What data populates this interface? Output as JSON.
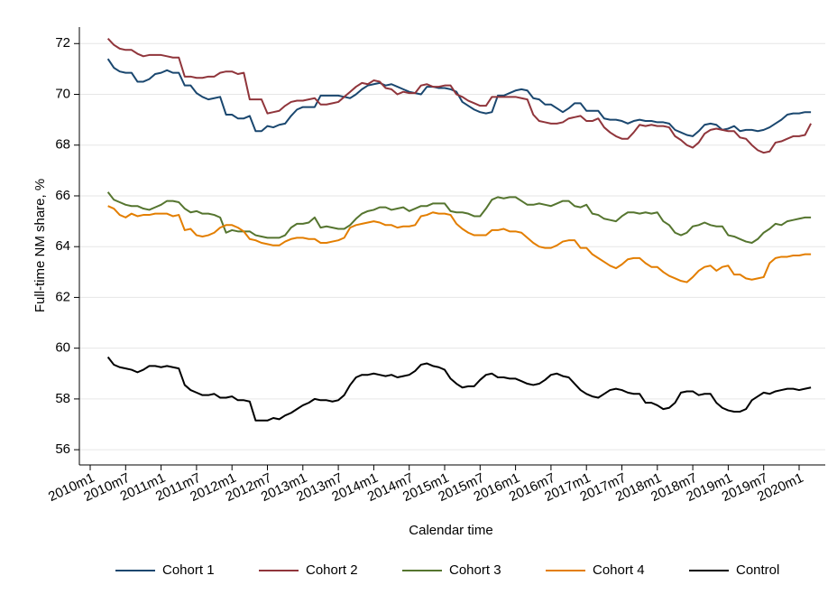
{
  "chart_data": {
    "type": "line",
    "y_label": "Full-time NM share, %",
    "x_label": "Calendar time",
    "x": [
      "2010m4",
      "2010m5",
      "2010m6",
      "2010m7",
      "2010m8",
      "2010m9",
      "2010m10",
      "2010m11",
      "2010m12",
      "2011m1",
      "2011m2",
      "2011m3",
      "2011m4",
      "2011m5",
      "2011m6",
      "2011m7",
      "2011m8",
      "2011m9",
      "2011m10",
      "2011m11",
      "2011m12",
      "2012m1",
      "2012m2",
      "2012m3",
      "2012m4",
      "2012m5",
      "2012m6",
      "2012m7",
      "2012m8",
      "2012m9",
      "2012m10",
      "2012m11",
      "2012m12",
      "2013m1",
      "2013m2",
      "2013m3",
      "2013m4",
      "2013m5",
      "2013m6",
      "2013m7",
      "2013m8",
      "2013m9",
      "2013m10",
      "2013m11",
      "2013m12",
      "2014m1",
      "2014m2",
      "2014m3",
      "2014m4",
      "2014m5",
      "2014m6",
      "2014m7",
      "2014m8",
      "2014m9",
      "2014m10",
      "2014m11",
      "2014m12",
      "2015m1",
      "2015m2",
      "2015m3",
      "2015m4",
      "2015m5",
      "2015m6",
      "2015m7",
      "2015m8",
      "2015m9",
      "2015m10",
      "2015m11",
      "2015m12",
      "2016m1",
      "2016m2",
      "2016m3",
      "2016m4",
      "2016m5",
      "2016m6",
      "2016m7",
      "2016m8",
      "2016m9",
      "2016m10",
      "2016m11",
      "2016m12",
      "2017m1",
      "2017m2",
      "2017m3",
      "2017m4",
      "2017m5",
      "2017m6",
      "2017m7",
      "2017m8",
      "2017m9",
      "2017m10",
      "2017m11",
      "2017m12",
      "2018m1",
      "2018m2",
      "2018m3",
      "2018m4",
      "2018m5",
      "2018m6",
      "2018m7",
      "2018m8",
      "2018m9",
      "2018m10",
      "2018m11",
      "2018m12",
      "2019m1",
      "2019m2",
      "2019m3",
      "2019m4",
      "2019m5",
      "2019m6",
      "2019m7",
      "2019m8",
      "2019m9",
      "2019m10",
      "2019m11",
      "2019m12",
      "2020m1",
      "2020m2",
      "2020m3"
    ],
    "xticks": [
      "2010m1",
      "2010m7",
      "2011m1",
      "2011m7",
      "2012m1",
      "2012m7",
      "2013m1",
      "2013m7",
      "2014m1",
      "2014m7",
      "2015m1",
      "2015m7",
      "2016m1",
      "2016m7",
      "2017m1",
      "2017m7",
      "2018m1",
      "2018m7",
      "2019m1",
      "2019m7",
      "2020m1"
    ],
    "ylim": [
      55.4,
      72.65
    ],
    "yticks": [
      56,
      58,
      60,
      62,
      64,
      66,
      68,
      70,
      72
    ],
    "grid": true,
    "legend": "bottom",
    "series": [
      {
        "name": "Cohort 1",
        "color": "#1a476f",
        "values": [
          71.4,
          71.05,
          70.9,
          70.85,
          70.85,
          70.5,
          70.5,
          70.6,
          70.8,
          70.85,
          70.95,
          70.85,
          70.85,
          70.35,
          70.35,
          70.05,
          69.9,
          69.8,
          69.85,
          69.9,
          69.2,
          69.2,
          69.05,
          69.05,
          69.15,
          68.55,
          68.55,
          68.75,
          68.7,
          68.8,
          68.85,
          69.15,
          69.4,
          69.5,
          69.5,
          69.5,
          69.95,
          69.95,
          69.95,
          69.95,
          69.9,
          69.85,
          70.0,
          70.2,
          70.35,
          70.4,
          70.45,
          70.35,
          70.4,
          70.3,
          70.2,
          70.1,
          70.05,
          70.0,
          70.3,
          70.3,
          70.25,
          70.25,
          70.2,
          70.1,
          69.7,
          69.55,
          69.4,
          69.3,
          69.25,
          69.3,
          69.95,
          69.95,
          70.05,
          70.15,
          70.2,
          70.15,
          69.85,
          69.8,
          69.6,
          69.6,
          69.45,
          69.3,
          69.45,
          69.65,
          69.65,
          69.35,
          69.35,
          69.35,
          69.05,
          69.0,
          69.0,
          68.95,
          68.85,
          68.95,
          69.0,
          68.95,
          68.95,
          68.9,
          68.9,
          68.85,
          68.6,
          68.5,
          68.4,
          68.35,
          68.55,
          68.8,
          68.85,
          68.8,
          68.6,
          68.65,
          68.75,
          68.55,
          68.6,
          68.6,
          68.55,
          68.6,
          68.7,
          68.85,
          69.0,
          69.2,
          69.25,
          69.25,
          69.3,
          69.3
        ]
      },
      {
        "name": "Cohort 2",
        "color": "#90353b",
        "values": [
          72.2,
          71.95,
          71.8,
          71.75,
          71.75,
          71.6,
          71.5,
          71.55,
          71.55,
          71.55,
          71.5,
          71.45,
          71.45,
          70.7,
          70.7,
          70.65,
          70.65,
          70.7,
          70.7,
          70.85,
          70.9,
          70.9,
          70.8,
          70.85,
          69.8,
          69.8,
          69.8,
          69.25,
          69.3,
          69.35,
          69.55,
          69.7,
          69.75,
          69.75,
          69.8,
          69.85,
          69.6,
          69.6,
          69.65,
          69.7,
          69.9,
          70.1,
          70.3,
          70.45,
          70.4,
          70.55,
          70.5,
          70.25,
          70.2,
          70.0,
          70.1,
          70.05,
          70.05,
          70.35,
          70.4,
          70.3,
          70.3,
          70.35,
          70.35,
          70.0,
          69.9,
          69.75,
          69.65,
          69.55,
          69.55,
          69.9,
          69.9,
          69.9,
          69.9,
          69.9,
          69.85,
          69.8,
          69.2,
          68.95,
          68.9,
          68.85,
          68.85,
          68.9,
          69.05,
          69.1,
          69.15,
          68.95,
          68.95,
          69.05,
          68.7,
          68.5,
          68.35,
          68.25,
          68.25,
          68.5,
          68.8,
          68.75,
          68.8,
          68.75,
          68.75,
          68.7,
          68.35,
          68.2,
          68.0,
          67.9,
          68.1,
          68.45,
          68.6,
          68.65,
          68.6,
          68.55,
          68.55,
          68.3,
          68.25,
          68.0,
          67.8,
          67.7,
          67.75,
          68.1,
          68.15,
          68.25,
          68.35,
          68.35,
          68.4,
          68.85
        ]
      },
      {
        "name": "Cohort 3",
        "color": "#55752f",
        "values": [
          66.15,
          65.85,
          65.75,
          65.65,
          65.6,
          65.6,
          65.5,
          65.45,
          65.55,
          65.65,
          65.8,
          65.8,
          65.75,
          65.5,
          65.35,
          65.4,
          65.3,
          65.3,
          65.25,
          65.15,
          64.55,
          64.65,
          64.6,
          64.6,
          64.6,
          64.45,
          64.4,
          64.35,
          64.35,
          64.35,
          64.45,
          64.75,
          64.9,
          64.9,
          64.95,
          65.15,
          64.75,
          64.8,
          64.75,
          64.7,
          64.7,
          64.85,
          65.1,
          65.3,
          65.4,
          65.45,
          65.55,
          65.55,
          65.45,
          65.5,
          65.55,
          65.4,
          65.5,
          65.6,
          65.6,
          65.7,
          65.7,
          65.7,
          65.4,
          65.35,
          65.35,
          65.3,
          65.2,
          65.2,
          65.5,
          65.85,
          65.95,
          65.9,
          65.95,
          65.95,
          65.8,
          65.65,
          65.65,
          65.7,
          65.65,
          65.6,
          65.7,
          65.8,
          65.8,
          65.6,
          65.55,
          65.65,
          65.3,
          65.25,
          65.1,
          65.05,
          65.0,
          65.2,
          65.35,
          65.35,
          65.3,
          65.35,
          65.3,
          65.35,
          65.0,
          64.85,
          64.55,
          64.45,
          64.55,
          64.8,
          64.85,
          64.95,
          64.85,
          64.8,
          64.8,
          64.45,
          64.4,
          64.3,
          64.2,
          64.15,
          64.3,
          64.55,
          64.7,
          64.9,
          64.85,
          65.0,
          65.05,
          65.1,
          65.15,
          65.15
        ]
      },
      {
        "name": "Cohort 4",
        "color": "#e37e00",
        "values": [
          65.6,
          65.5,
          65.25,
          65.15,
          65.3,
          65.2,
          65.25,
          65.25,
          65.3,
          65.3,
          65.3,
          65.2,
          65.25,
          64.65,
          64.7,
          64.45,
          64.4,
          64.45,
          64.55,
          64.75,
          64.85,
          64.85,
          64.75,
          64.6,
          64.3,
          64.25,
          64.15,
          64.1,
          64.05,
          64.05,
          64.2,
          64.3,
          64.35,
          64.35,
          64.3,
          64.3,
          64.15,
          64.15,
          64.2,
          64.25,
          64.35,
          64.75,
          64.85,
          64.9,
          64.95,
          65.0,
          64.95,
          64.85,
          64.85,
          64.75,
          64.8,
          64.8,
          64.85,
          65.2,
          65.25,
          65.35,
          65.3,
          65.3,
          65.25,
          64.9,
          64.7,
          64.55,
          64.45,
          64.45,
          64.45,
          64.65,
          64.65,
          64.7,
          64.6,
          64.6,
          64.55,
          64.35,
          64.15,
          64.0,
          63.95,
          63.95,
          64.05,
          64.2,
          64.25,
          64.25,
          63.95,
          63.95,
          63.7,
          63.55,
          63.4,
          63.25,
          63.15,
          63.3,
          63.5,
          63.55,
          63.55,
          63.35,
          63.2,
          63.2,
          63.0,
          62.85,
          62.75,
          62.65,
          62.6,
          62.8,
          63.05,
          63.2,
          63.25,
          63.05,
          63.2,
          63.25,
          62.9,
          62.9,
          62.75,
          62.7,
          62.75,
          62.8,
          63.35,
          63.55,
          63.6,
          63.6,
          63.65,
          63.65,
          63.7,
          63.7
        ]
      },
      {
        "name": "Control",
        "color": "#000000",
        "values": [
          59.65,
          59.35,
          59.25,
          59.2,
          59.15,
          59.05,
          59.15,
          59.3,
          59.3,
          59.25,
          59.3,
          59.25,
          59.2,
          58.55,
          58.35,
          58.25,
          58.15,
          58.15,
          58.2,
          58.05,
          58.05,
          58.1,
          57.95,
          57.95,
          57.9,
          57.15,
          57.15,
          57.15,
          57.25,
          57.2,
          57.35,
          57.45,
          57.6,
          57.75,
          57.85,
          58.0,
          57.95,
          57.95,
          57.9,
          57.95,
          58.15,
          58.55,
          58.85,
          58.95,
          58.95,
          59.0,
          58.95,
          58.9,
          58.95,
          58.85,
          58.9,
          58.95,
          59.1,
          59.35,
          59.4,
          59.3,
          59.25,
          59.15,
          58.8,
          58.6,
          58.45,
          58.5,
          58.5,
          58.75,
          58.95,
          59.0,
          58.85,
          58.85,
          58.8,
          58.8,
          58.7,
          58.6,
          58.55,
          58.6,
          58.75,
          58.95,
          59.0,
          58.9,
          58.85,
          58.6,
          58.35,
          58.2,
          58.1,
          58.05,
          58.2,
          58.35,
          58.4,
          58.35,
          58.25,
          58.2,
          58.2,
          57.85,
          57.85,
          57.75,
          57.6,
          57.65,
          57.85,
          58.25,
          58.3,
          58.3,
          58.15,
          58.2,
          58.2,
          57.85,
          57.65,
          57.55,
          57.5,
          57.5,
          57.6,
          57.95,
          58.1,
          58.25,
          58.2,
          58.3,
          58.35,
          58.4,
          58.4,
          58.35,
          58.4,
          58.45
        ]
      }
    ]
  }
}
